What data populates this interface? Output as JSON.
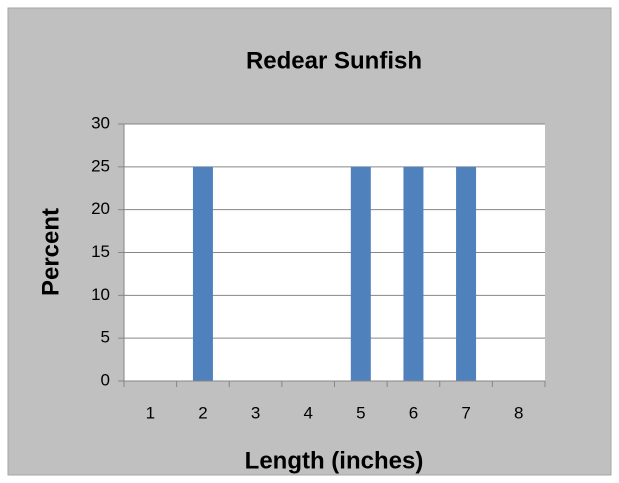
{
  "chart_data": {
    "type": "bar",
    "title": "Redear Sunfish",
    "xlabel": "Length (inches)",
    "ylabel": "Percent",
    "categories": [
      "1",
      "2",
      "3",
      "4",
      "5",
      "6",
      "7",
      "8"
    ],
    "values": [
      0,
      25,
      0,
      0,
      25,
      25,
      25,
      0
    ],
    "color": "#4f81bd",
    "ylim": [
      0,
      30
    ],
    "yticks": [
      0,
      5,
      10,
      15,
      20,
      25,
      30
    ],
    "grid": true
  }
}
